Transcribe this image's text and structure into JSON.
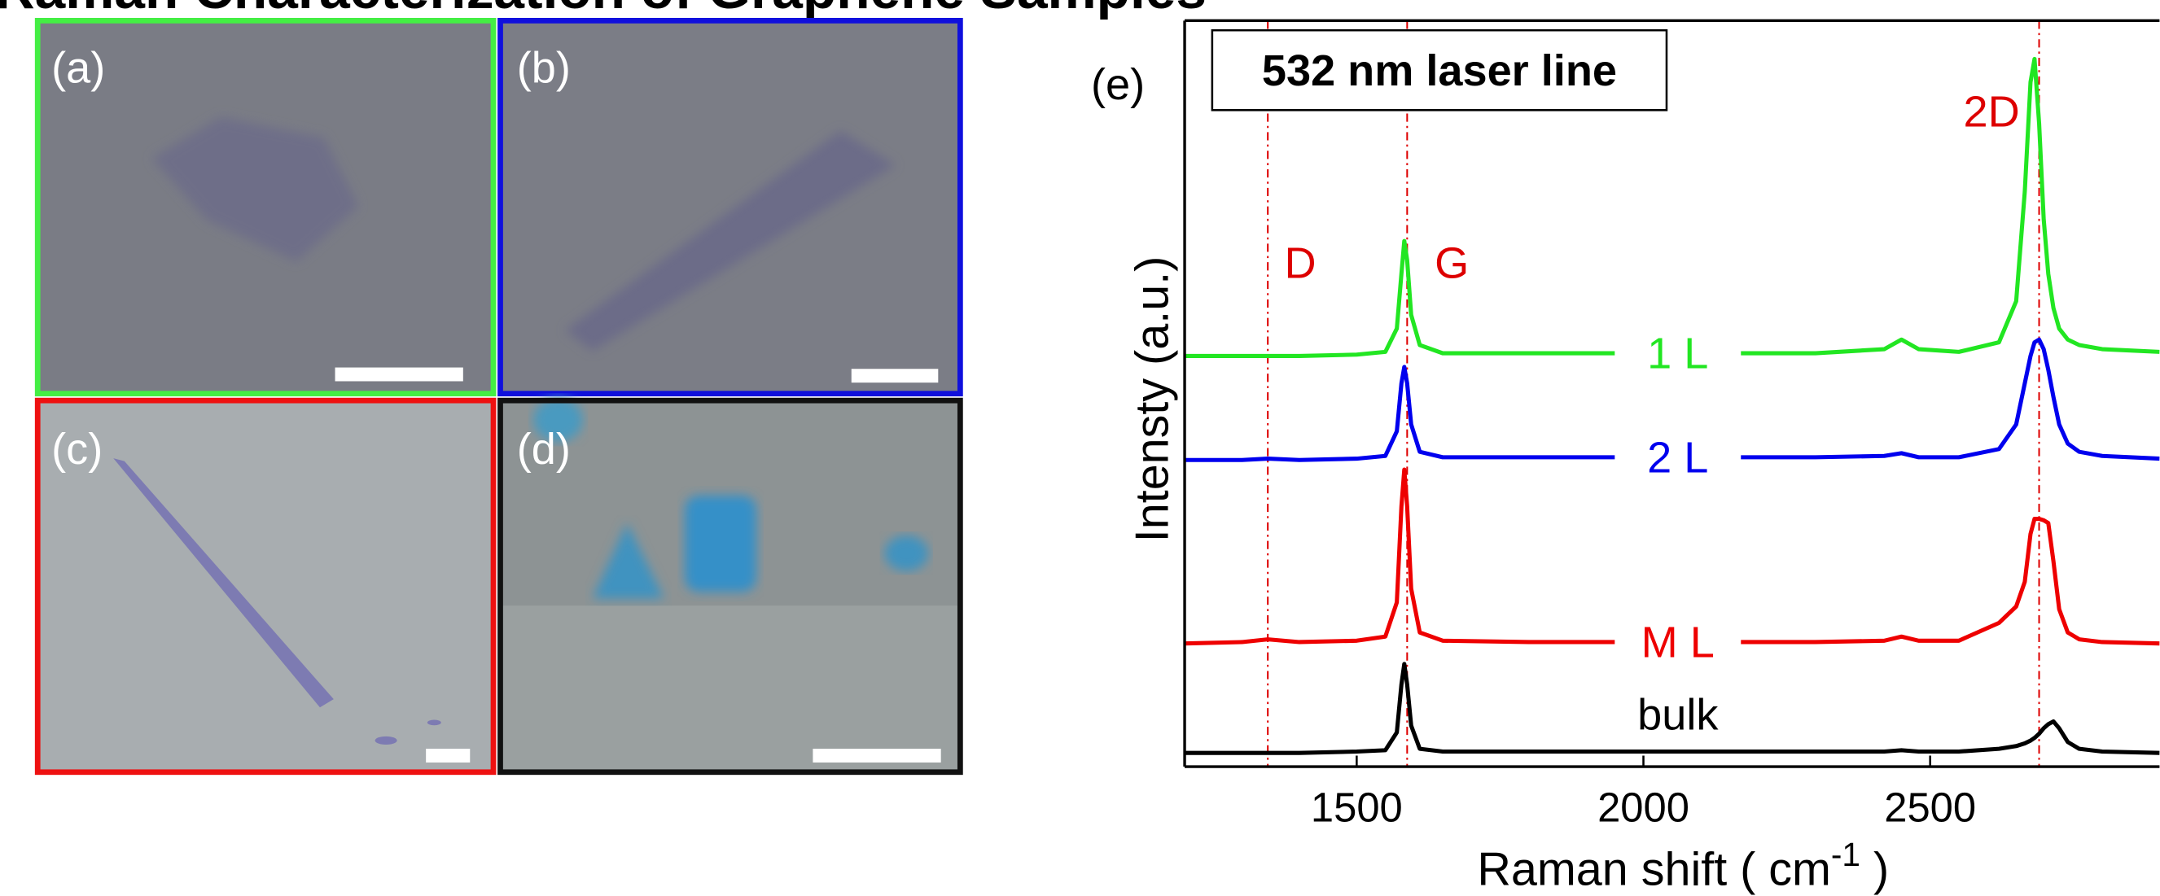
{
  "title": "Raman Characterization of Graphene Samples",
  "panels": [
    {
      "label": "(a)",
      "border": "#44ee44"
    },
    {
      "label": "(b)",
      "border": "#1010dd"
    },
    {
      "label": "(c)",
      "border": "#ee1111"
    },
    {
      "label": "(d)",
      "border": "#111111"
    }
  ],
  "chart_data": {
    "type": "line",
    "panel_label": "(e)",
    "subtitle": "532 nm laser line",
    "y_label": "Intensty (a.u.)",
    "x_label": {
      "text": "Raman shift ( cm",
      "sup": "-1",
      "tail": " )"
    },
    "xlim": [
      1200,
      2900
    ],
    "xticks": [
      1500,
      2000,
      2500
    ],
    "ylim": [
      0,
      545
    ],
    "reference_lines": [
      {
        "label": "D",
        "x": 1345,
        "color": "#dd0000"
      },
      {
        "label": "G",
        "x": 1588,
        "color": "#dd0000"
      },
      {
        "label": "2D",
        "x": 2690,
        "color": "#dd0000"
      }
    ],
    "x": [
      1200,
      1300,
      1345,
      1400,
      1500,
      1550,
      1570,
      1578,
      1583,
      1588,
      1595,
      1610,
      1650,
      1800,
      1950,
      2060,
      2170,
      2300,
      2420,
      2450,
      2480,
      2550,
      2620,
      2650,
      2665,
      2675,
      2682,
      2690,
      2698,
      2706,
      2715,
      2725,
      2740,
      2760,
      2800,
      2900
    ],
    "series": [
      {
        "name": "1 L",
        "color": "#22e622",
        "values": [
          300,
          300,
          300,
          300,
          301,
          303,
          320,
          360,
          384,
          370,
          330,
          308,
          302,
          302,
          302,
          null,
          302,
          302,
          305,
          312,
          305,
          303,
          310,
          340,
          420,
          500,
          517,
          470,
          400,
          360,
          335,
          320,
          312,
          308,
          305,
          303
        ]
      },
      {
        "name": "2 L",
        "color": "#0000ee",
        "values": [
          224,
          224,
          225,
          224,
          225,
          227,
          245,
          280,
          292,
          280,
          250,
          230,
          226,
          226,
          226,
          null,
          226,
          226,
          227,
          229,
          226,
          226,
          232,
          250,
          280,
          300,
          310,
          312,
          305,
          290,
          270,
          250,
          236,
          230,
          227,
          225
        ]
      },
      {
        "name": "M L",
        "color": "#ee0000",
        "values": [
          90,
          91,
          93,
          91,
          92,
          95,
          120,
          190,
          217,
          190,
          130,
          98,
          92,
          91,
          91,
          null,
          91,
          91,
          92,
          95,
          92,
          92,
          105,
          117,
          135,
          170,
          181,
          181,
          180,
          178,
          150,
          115,
          98,
          93,
          91,
          90
        ]
      },
      {
        "name": "bulk",
        "color": "#000000",
        "values": [
          10,
          10,
          10,
          10,
          11,
          12,
          25,
          60,
          75,
          60,
          30,
          13,
          11,
          11,
          11,
          11,
          11,
          11,
          11,
          12,
          11,
          11,
          13,
          15,
          17,
          19,
          21,
          24,
          28,
          31,
          33,
          28,
          18,
          13,
          11,
          10
        ]
      }
    ]
  }
}
